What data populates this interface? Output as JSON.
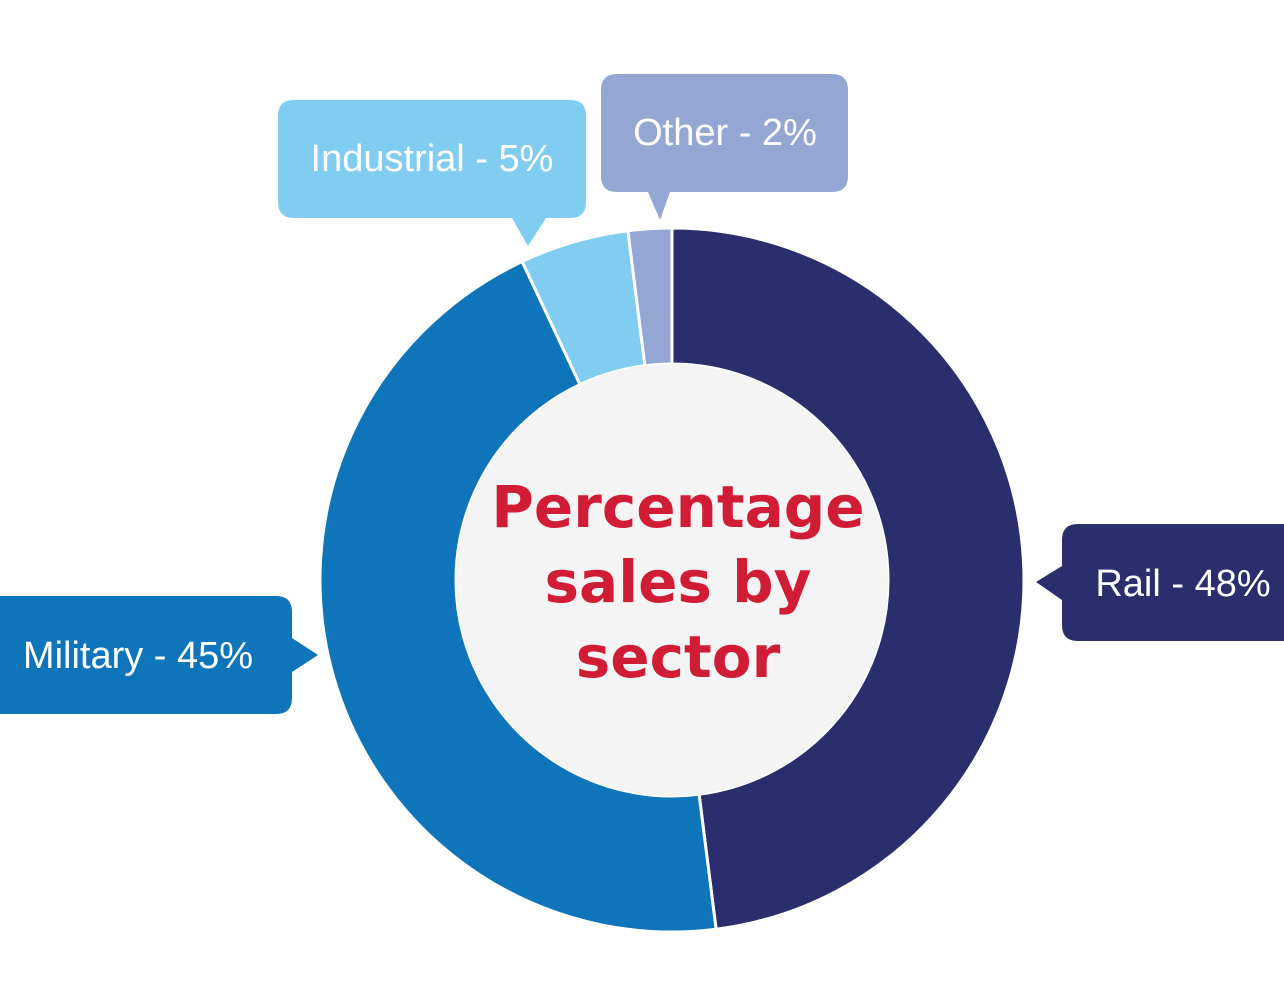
{
  "chart_data": {
    "type": "pie",
    "variant": "donut",
    "title_lines": [
      "Percentage",
      "sales by",
      "sector"
    ],
    "slices": [
      {
        "label": "Rail - 48%",
        "name": "Rail",
        "value": 48,
        "color": "#2a2e6c"
      },
      {
        "label": "Military - 45%",
        "name": "Military",
        "value": 45,
        "color": "#0e75ba"
      },
      {
        "label": "Industrial - 5%",
        "name": "Industrial",
        "value": 5,
        "color": "#80cdf1"
      },
      {
        "label": "Other - 2%",
        "name": "Other",
        "value": 2,
        "color": "#94a6d4"
      }
    ],
    "center_color": "#f4f4f5",
    "title_color": "#d01c35"
  }
}
